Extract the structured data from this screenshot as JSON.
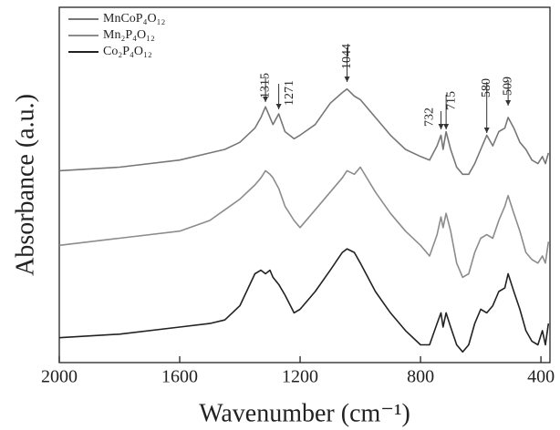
{
  "chart_data": {
    "type": "line",
    "xlabel": "Wavenumber (cm⁻¹)",
    "ylabel": "Absorbance (a.u.)",
    "x": [
      2000,
      1800,
      1600,
      1500,
      1450,
      1400,
      1350,
      1330,
      1315,
      1300,
      1290,
      1271,
      1250,
      1220,
      1200,
      1150,
      1100,
      1060,
      1044,
      1020,
      1000,
      950,
      900,
      850,
      800,
      770,
      745,
      732,
      725,
      715,
      700,
      680,
      660,
      640,
      620,
      600,
      580,
      560,
      540,
      520,
      509,
      490,
      470,
      450,
      430,
      410,
      395,
      385,
      375
    ],
    "series": [
      {
        "name": "MnCoP₄O₁₂",
        "color": "#777777",
        "values": [
          54,
          55,
          57,
          59,
          60,
          62,
          66,
          69,
          72,
          69,
          67,
          70,
          65,
          63,
          64,
          67,
          73,
          76,
          77,
          75,
          74,
          69,
          64,
          60,
          58,
          57,
          61,
          64,
          60,
          65,
          60,
          55,
          53,
          53,
          56,
          60,
          64,
          61,
          65,
          66,
          69,
          66,
          62,
          60,
          57,
          56,
          58,
          56,
          59
        ]
      },
      {
        "name": "Mn₂P₄O₁₂",
        "color": "#8c8c8c",
        "values": [
          33,
          35,
          37,
          40,
          43,
          46,
          50,
          52,
          54,
          53,
          52,
          49,
          44,
          40,
          38,
          43,
          48,
          52,
          54,
          53,
          55,
          48,
          42,
          37,
          33,
          30,
          36,
          41,
          38,
          42,
          37,
          28,
          24,
          25,
          31,
          35,
          36,
          35,
          40,
          44,
          47,
          42,
          37,
          31,
          29,
          28,
          30,
          28,
          34
        ]
      },
      {
        "name": "Co₂P₄O₁₂",
        "color": "#222222",
        "values": [
          7,
          8,
          10,
          11,
          12,
          16,
          25,
          26,
          25,
          26,
          24,
          22,
          19,
          14,
          15,
          20,
          26,
          31,
          32,
          31,
          28,
          20,
          14,
          9,
          5,
          5,
          11,
          14,
          10,
          14,
          10,
          5,
          3,
          5,
          11,
          15,
          14,
          16,
          20,
          21,
          25,
          20,
          15,
          9,
          6,
          5,
          9,
          5,
          11
        ]
      }
    ],
    "annotations": [
      1315,
      1271,
      1044,
      732,
      715,
      580,
      509
    ],
    "xlim": [
      2000,
      370
    ],
    "ylim": [
      0,
      100
    ],
    "xticks": [
      2000,
      1600,
      1200,
      800,
      400
    ],
    "legend": "upper left"
  }
}
